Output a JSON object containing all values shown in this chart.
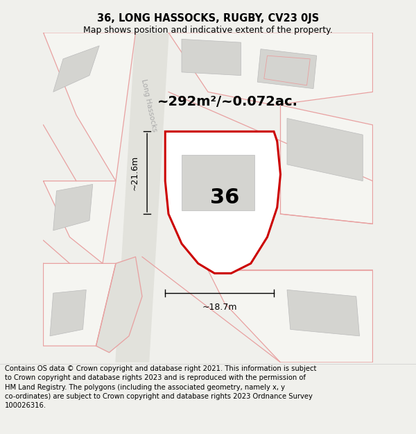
{
  "title": "36, LONG HASSOCKS, RUGBY, CV23 0JS",
  "subtitle": "Map shows position and indicative extent of the property.",
  "footer": "Contains OS data © Crown copyright and database right 2021. This information is subject to Crown copyright and database rights 2023 and is reproduced with the permission of HM Land Registry. The polygons (including the associated geometry, namely x, y co-ordinates) are subject to Crown copyright and database rights 2023 Ordnance Survey 100026316.",
  "area_label": "~292m²/~0.072ac.",
  "number_label": "36",
  "dim_vertical": "~21.6m",
  "dim_horizontal": "~18.7m",
  "street_label": "Long Hassocks",
  "bg_color": "#f0f0ec",
  "map_bg": "#f5f5f1",
  "plot_color": "#cc0000",
  "building_fill": "#d4d4d0",
  "building_edge": "#bbbbbb",
  "pink": "#e8a0a0",
  "road_fill": "#e8e8e2",
  "title_fontsize": 10.5,
  "subtitle_fontsize": 9,
  "footer_fontsize": 7.2,
  "area_fontsize": 14,
  "number_fontsize": 22,
  "dim_fontsize": 9,
  "street_fontsize": 7.5
}
